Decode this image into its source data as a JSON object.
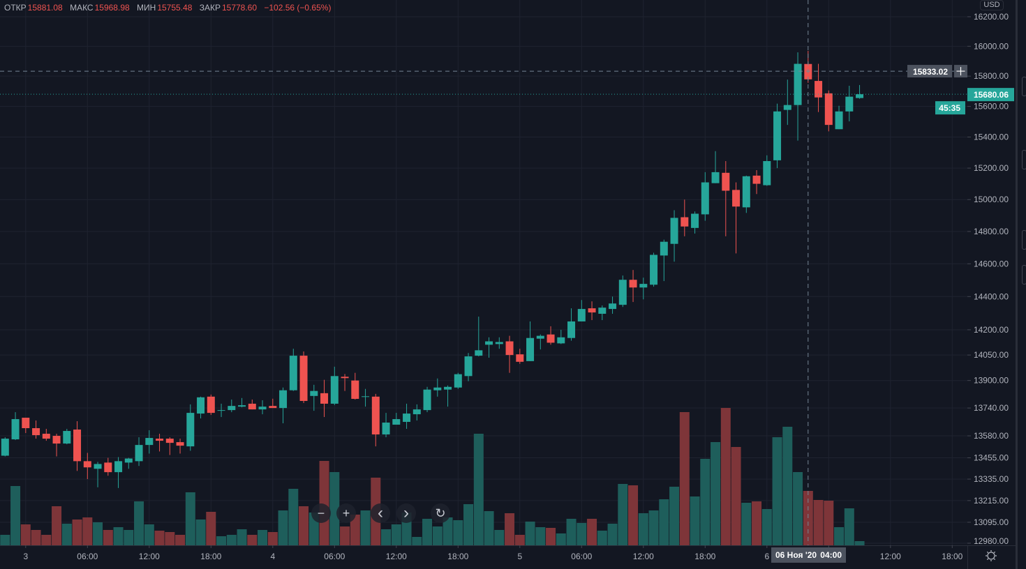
{
  "header": {
    "open_label": "ОТКР",
    "open": "15881.08",
    "high_label": "МАКС",
    "high": "15968.98",
    "low_label": "МИН",
    "low": "15755.48",
    "close_label": "ЗАКР",
    "close": "15778.60",
    "change": "−102.56 (−0.65%)"
  },
  "currency": "USD",
  "crosshair": {
    "price": "15833.02",
    "date": "06 Ноя '20",
    "time": "04:00"
  },
  "last_price": {
    "price": "15680.06",
    "countdown": "45:35"
  },
  "buttons": {
    "zoom_out": "−",
    "zoom_in": "+",
    "scroll_left": "‹",
    "scroll_right": "›",
    "reset": "↻"
  },
  "colors": {
    "background": "#131722",
    "up": "#26a69a",
    "down": "#ef5350",
    "volume_up": "#1e5e5b",
    "volume_down": "#7e3539",
    "grid": "#1f2330",
    "crosshair": "#758696",
    "axis_text": "#b2b5be"
  },
  "chart_data": {
    "type": "candlestick",
    "y_scale": "log",
    "ylim": [
      12980,
      16200
    ],
    "grid": true,
    "price_ticks": [
      "16200.00",
      "16000.00",
      "15800.00",
      "15600.00",
      "15400.00",
      "15200.00",
      "15000.00",
      "14800.00",
      "14600.00",
      "14400.00",
      "14200.00",
      "14050.00",
      "13900.00",
      "13740.00",
      "13580.00",
      "13455.00",
      "13335.00",
      "13215.00",
      "13095.00",
      "12980.00"
    ],
    "time_ticks": [
      "3",
      "06:00",
      "12:00",
      "18:00",
      "4",
      "06:00",
      "12:00",
      "18:00",
      "5",
      "06:00",
      "12:00",
      "18:00",
      "6",
      "",
      "12:00",
      "18:00"
    ],
    "candles": [
      [
        13467,
        13572,
        13463,
        13564
      ],
      [
        13560,
        13716,
        13556,
        13676
      ],
      [
        13684,
        13684,
        13596,
        13624
      ],
      [
        13624,
        13668,
        13564,
        13584
      ],
      [
        13592,
        13620,
        13552,
        13564
      ],
      [
        13580,
        13592,
        13463,
        13536
      ],
      [
        13536,
        13620,
        13532,
        13608
      ],
      [
        13616,
        13664,
        13381,
        13436
      ],
      [
        13436,
        13483,
        13335,
        13401
      ],
      [
        13393,
        13432,
        13289,
        13420
      ],
      [
        13428,
        13455,
        13354,
        13374
      ],
      [
        13374,
        13459,
        13285,
        13436
      ],
      [
        13428,
        13455,
        13393,
        13451
      ],
      [
        13436,
        13572,
        13409,
        13528
      ],
      [
        13528,
        13612,
        13479,
        13568
      ],
      [
        13564,
        13592,
        13491,
        13552
      ],
      [
        13564,
        13572,
        13471,
        13540
      ],
      [
        13544,
        13564,
        13479,
        13524
      ],
      [
        13520,
        13761,
        13495,
        13712
      ],
      [
        13708,
        13806,
        13680,
        13802
      ],
      [
        13806,
        13818,
        13700,
        13712
      ],
      [
        13726,
        13765,
        13688,
        13728
      ],
      [
        13728,
        13789,
        13716,
        13752
      ],
      [
        13748,
        13798,
        13744,
        13756
      ],
      [
        13765,
        13789,
        13732,
        13732
      ],
      [
        13732,
        13785,
        13704,
        13748
      ],
      [
        13752,
        13794,
        13740,
        13740
      ],
      [
        13740,
        13859,
        13652,
        13843
      ],
      [
        13843,
        14087,
        13839,
        14046
      ],
      [
        14046,
        14071,
        13769,
        13781
      ],
      [
        13810,
        13875,
        13724,
        13839
      ],
      [
        13826,
        13904,
        13688,
        13765
      ],
      [
        13765,
        13981,
        13757,
        13926
      ],
      [
        13922,
        13938,
        13839,
        13914
      ],
      [
        13900,
        13945,
        13789,
        13793
      ],
      [
        13806,
        13851,
        13748,
        13808
      ],
      [
        13806,
        13822,
        13520,
        13588
      ],
      [
        13588,
        13712,
        13572,
        13656
      ],
      [
        13644,
        13712,
        13644,
        13676
      ],
      [
        13660,
        13765,
        13620,
        13708
      ],
      [
        13704,
        13761,
        13668,
        13732
      ],
      [
        13728,
        13863,
        13716,
        13847
      ],
      [
        13843,
        13912,
        13806,
        13859
      ],
      [
        13847,
        13871,
        13748,
        13863
      ],
      [
        13859,
        13945,
        13851,
        13937
      ],
      [
        13926,
        14062,
        13896,
        14042
      ],
      [
        14046,
        14279,
        14042,
        14078
      ],
      [
        14111,
        14155,
        14034,
        14131
      ],
      [
        14115,
        14155,
        14087,
        14127
      ],
      [
        14131,
        14164,
        13945,
        14050
      ],
      [
        14054,
        14087,
        13998,
        14010
      ],
      [
        14014,
        14250,
        14014,
        14151
      ],
      [
        14147,
        14172,
        14083,
        14164
      ],
      [
        14172,
        14221,
        14111,
        14123
      ],
      [
        14119,
        14200,
        14115,
        14155
      ],
      [
        14151,
        14329,
        14135,
        14250
      ],
      [
        14250,
        14379,
        14250,
        14325
      ],
      [
        14329,
        14371,
        14258,
        14304
      ],
      [
        14296,
        14346,
        14258,
        14333
      ],
      [
        14325,
        14400,
        14296,
        14358
      ],
      [
        14350,
        14528,
        14337,
        14502
      ],
      [
        14502,
        14562,
        14367,
        14455
      ],
      [
        14455,
        14515,
        14383,
        14477
      ],
      [
        14472,
        14668,
        14460,
        14655
      ],
      [
        14651,
        14749,
        14494,
        14736
      ],
      [
        14723,
        14933,
        14613,
        14885
      ],
      [
        14889,
        15000,
        14770,
        14831
      ],
      [
        14822,
        14925,
        14787,
        14911
      ],
      [
        14907,
        15174,
        14867,
        15109
      ],
      [
        15104,
        15309,
        15104,
        15174
      ],
      [
        15170,
        15245,
        14770,
        15056
      ],
      [
        15061,
        15109,
        14664,
        14956
      ],
      [
        14951,
        15152,
        14916,
        15148
      ],
      [
        15152,
        15187,
        15035,
        15100
      ],
      [
        15091,
        15282,
        15087,
        15245
      ],
      [
        15250,
        15618,
        15200,
        15567
      ],
      [
        15577,
        15777,
        15479,
        15609
      ],
      [
        15609,
        15959,
        15377,
        15882
      ],
      [
        15881.08,
        15968.98,
        15755.48,
        15778.6
      ],
      [
        15768,
        15882,
        15563,
        15659
      ],
      [
        15686,
        15705,
        15437,
        15479
      ],
      [
        15451,
        15604,
        15451,
        15567
      ],
      [
        15567,
        15736,
        15502,
        15664
      ],
      [
        15655,
        15741,
        15650,
        15680.06
      ]
    ],
    "volume": [
      15,
      85,
      30,
      22,
      15,
      56,
      31,
      37,
      40,
      33,
      22,
      26,
      22,
      63,
      30,
      21,
      19,
      15,
      76,
      37,
      48,
      13,
      15,
      23,
      15,
      22,
      19,
      50,
      81,
      56,
      47,
      121,
      105,
      27,
      44,
      50,
      97,
      23,
      30,
      47,
      12,
      38,
      27,
      40,
      36,
      59,
      160,
      49,
      22,
      46,
      15,
      34,
      26,
      25,
      17,
      38,
      32,
      38,
      21,
      31,
      88,
      86,
      46,
      50,
      66,
      84,
      191,
      70,
      124,
      148,
      197,
      141,
      61,
      63,
      52,
      155,
      170,
      105,
      78,
      65,
      64,
      26,
      53,
      6
    ]
  }
}
